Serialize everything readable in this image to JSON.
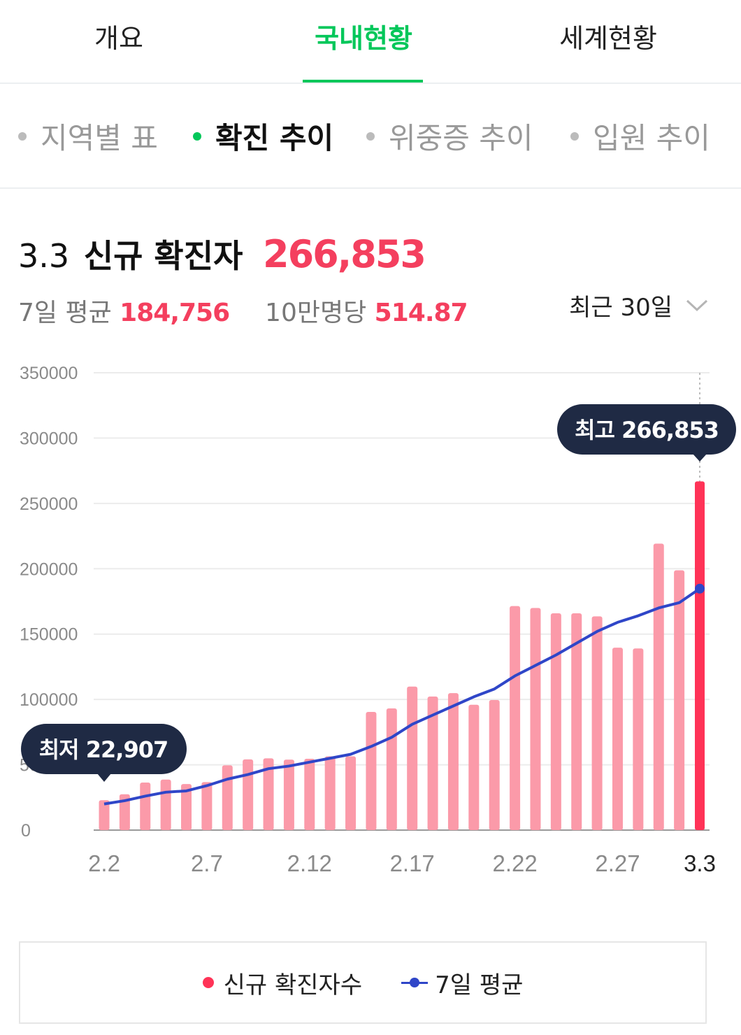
{
  "tabs": [
    {
      "label": "개요",
      "active": false
    },
    {
      "label": "국내현황",
      "active": true
    },
    {
      "label": "세계현황",
      "active": false
    }
  ],
  "subtabs": [
    {
      "label": "지역별 표",
      "active": false
    },
    {
      "label": "확진 추이",
      "active": true
    },
    {
      "label": "위중증 추이",
      "active": false
    },
    {
      "label": "입원 추이",
      "active": false
    }
  ],
  "headline": {
    "date": "3.3",
    "label": "신규 확진자",
    "value": "266,853"
  },
  "stats": {
    "avg_label": "7일 평균",
    "avg_value": "184,756",
    "per_label": "10만명당",
    "per_value": "514.87"
  },
  "range_select": {
    "label": "최근 30일",
    "icon": "chevron-down-icon"
  },
  "colors": {
    "accent": "#03c75a",
    "bar": "#fb9aa9",
    "bar_highlight": "#ff3357",
    "line": "#2f46c8",
    "tooltip_bg": "#1f2a44",
    "value_red": "#f43f5e"
  },
  "chart_data": {
    "type": "bar",
    "title": "",
    "xlabel": "",
    "ylabel": "",
    "ylim": [
      0,
      350000
    ],
    "yticks": [
      "350000",
      "300000",
      "250000",
      "200000",
      "150000",
      "100000",
      "50000",
      "0"
    ],
    "xtick_labels": [
      "2.2",
      "2.7",
      "2.12",
      "2.17",
      "2.22",
      "2.27",
      "3.3"
    ],
    "grid": true,
    "legend_position": "bottom",
    "categories": [
      "2.2",
      "2.3",
      "2.4",
      "2.5",
      "2.6",
      "2.7",
      "2.8",
      "2.9",
      "2.10",
      "2.11",
      "2.12",
      "2.13",
      "2.14",
      "2.15",
      "2.16",
      "2.17",
      "2.18",
      "2.19",
      "2.20",
      "2.21",
      "2.22",
      "2.23",
      "2.24",
      "2.25",
      "2.26",
      "2.27",
      "2.28",
      "3.1",
      "3.2",
      "3.3"
    ],
    "series": [
      {
        "name": "신규 확진자수",
        "type": "bar",
        "values": [
          22907,
          27443,
          36362,
          38691,
          35286,
          36717,
          49567,
          54122,
          54941,
          53926,
          54619,
          56431,
          56431,
          90443,
          93135,
          109831,
          102211,
          104829,
          95962,
          99573,
          171452,
          170016,
          165890,
          165890,
          163566,
          139626,
          138993,
          219241,
          198803,
          266853
        ]
      },
      {
        "name": "7일 평균",
        "type": "line",
        "values": [
          20000,
          22500,
          26000,
          29000,
          30000,
          34000,
          39000,
          42500,
          47000,
          49000,
          52000,
          55000,
          58000,
          64000,
          71000,
          81000,
          88000,
          95000,
          102000,
          108000,
          118000,
          126000,
          134000,
          143000,
          152000,
          159000,
          164000,
          170000,
          174000,
          184756
        ]
      }
    ],
    "annotations": [
      {
        "text": "최저 22,907",
        "category": "2.2"
      },
      {
        "text": "최고 266,853",
        "category": "3.3"
      }
    ]
  },
  "legend": [
    {
      "label": "신규 확진자수",
      "marker": "dot"
    },
    {
      "label": "7일 평균",
      "marker": "line"
    }
  ]
}
